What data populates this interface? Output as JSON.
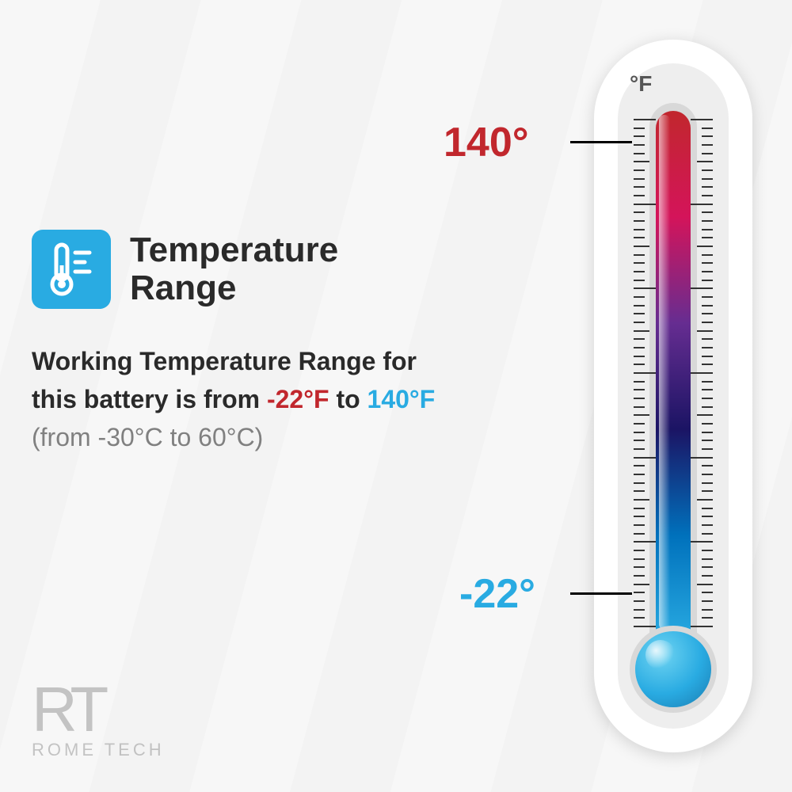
{
  "infographic": {
    "type": "infographic",
    "title": "Temperature\nRange",
    "title_color": "#2a2a2a",
    "title_fontsize": 44,
    "icon_bg": "#29abe2",
    "description": {
      "prefix": "Working Temperature Range for this battery is from ",
      "low_value": "-22°F",
      "mid": " to ",
      "high_value": "140°F",
      "celsius": "(from -30°C to 60°C)",
      "text_color": "#2a2a2a",
      "low_color": "#c1272d",
      "high_color": "#29abe2",
      "celsius_color": "#808080",
      "fontsize": 32
    }
  },
  "thermometer": {
    "unit": "°F",
    "unit_color": "#555555",
    "high_label": "140°",
    "low_label": "-22°",
    "high_color": "#c1272d",
    "low_color": "#29abe2",
    "gradient_stops": [
      "#c1272d",
      "#d4145a",
      "#662d91",
      "#1b1464",
      "#0071bc",
      "#29abe2"
    ],
    "bulb_color": "#29abe2",
    "body_bg": "#ffffff",
    "inner_bg": "#eeeeee",
    "tube_bg": "#d8d8d8",
    "tick_color": "#333333",
    "tick_count": 60
  },
  "brand": {
    "mark": "RT",
    "name": "ROME TECH",
    "color": "#999999"
  },
  "background": "#f5f5f5"
}
